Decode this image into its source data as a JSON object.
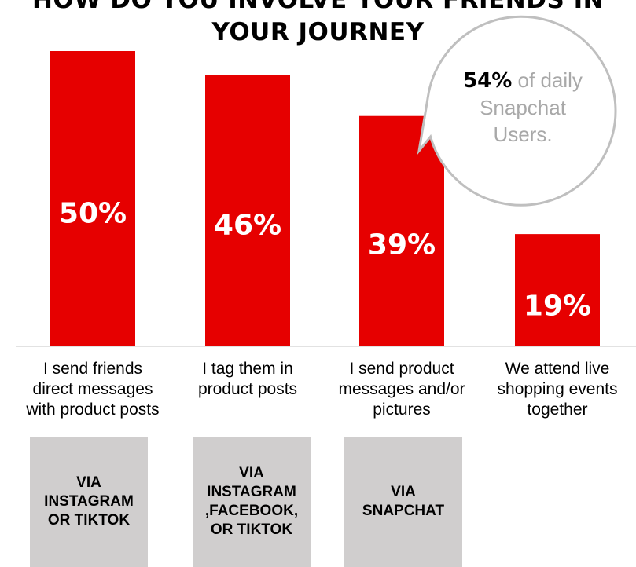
{
  "chart_data": {
    "type": "bar",
    "title_lines": [
      "HOW DO YOU INVOLVE YOUR FRIENDS IN",
      "YOUR JOURNEY"
    ],
    "categories": [
      [
        "I send friends",
        "direct messages",
        "with product posts"
      ],
      [
        "I tag them in",
        "product posts"
      ],
      [
        "I send product",
        "messages and/or",
        "pictures"
      ],
      [
        "We attend live",
        "shopping events",
        "together"
      ]
    ],
    "values": [
      50,
      46,
      39,
      19
    ],
    "value_labels": [
      "50%",
      "46%",
      "39%",
      "19%"
    ],
    "ylim": [
      0,
      55
    ],
    "bar_color": "#e60000",
    "grid": false,
    "xlabel": "",
    "ylabel": ""
  },
  "channel_boxes": [
    "VIA\nINSTAGRAM\nOR TIKTOK",
    "VIA\nINSTAGRAM\n,FACEBOOK,\nOR TIKTOK",
    "VIA\nSNAPCHAT"
  ],
  "callout": {
    "highlight": "54%",
    "text_part1": " of daily",
    "text_part2": "Snapchat",
    "text_part3": "Users."
  },
  "colors": {
    "bar": "#e60000",
    "box": "#d0cece",
    "callout_border": "#bfbfbf",
    "baseline": "#d9d9d9"
  }
}
